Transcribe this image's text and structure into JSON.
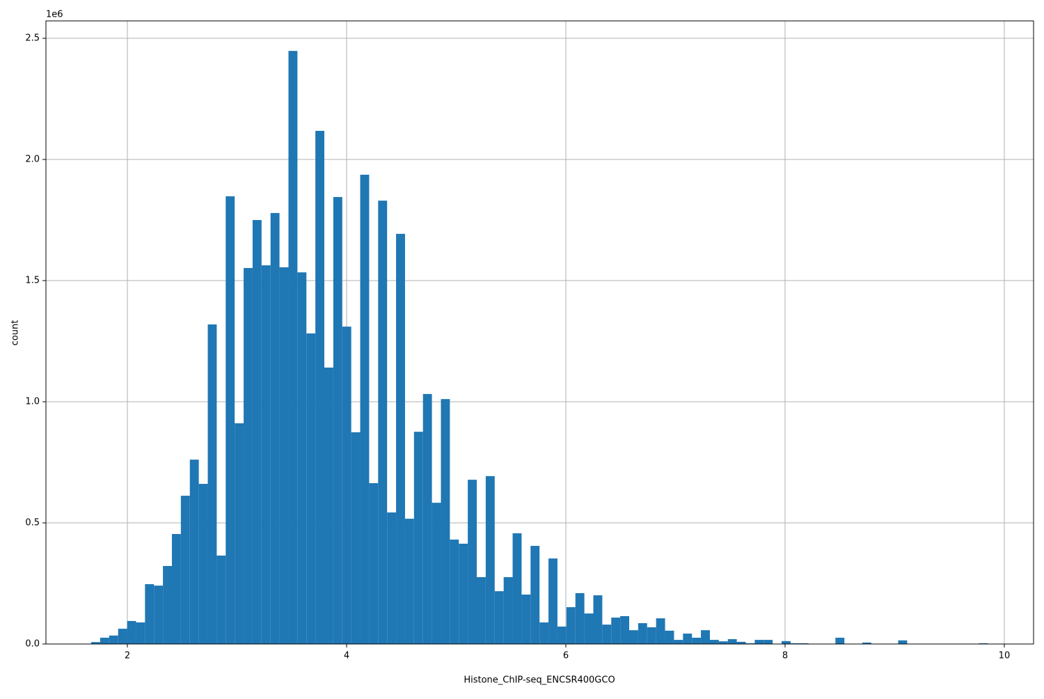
{
  "chart_data": {
    "type": "histogram",
    "x_label": "Histone_ChIP-seq_ENCSR400GCO",
    "y_label": "count",
    "y_offset_label": "1e6",
    "color": "#1f77b4",
    "grid": true,
    "xlim": [
      1.257,
      10.267
    ],
    "ylim": [
      0,
      2572000
    ],
    "xticks": [
      2,
      4,
      6,
      8,
      10
    ],
    "yticks": [
      {
        "value": 0,
        "label": "0.0"
      },
      {
        "value": 500000,
        "label": "0.5"
      },
      {
        "value": 1000000,
        "label": "1.0"
      },
      {
        "value": 1500000,
        "label": "1.5"
      },
      {
        "value": 2000000,
        "label": "2.0"
      },
      {
        "value": 2500000,
        "label": "2.5"
      }
    ],
    "bins": [
      1.67,
      1.7518,
      1.8336,
      1.9154,
      1.9972,
      2.079,
      2.1608,
      2.2426,
      2.3244,
      2.4062,
      2.488,
      2.5698,
      2.6516,
      2.7334,
      2.8152,
      2.897,
      2.9788,
      3.0606,
      3.1424,
      3.2242,
      3.306,
      3.3878,
      3.4696,
      3.5514,
      3.6332,
      3.715,
      3.7968,
      3.8786,
      3.9604,
      4.0422,
      4.124,
      4.2058,
      4.2876,
      4.3694,
      4.4512,
      4.533,
      4.6148,
      4.6966,
      4.7784,
      4.8602,
      4.942,
      5.0238,
      5.1056,
      5.1874,
      5.2692,
      5.351,
      5.4328,
      5.5146,
      5.5964,
      5.6782,
      5.76,
      5.8418,
      5.9236,
      6.0054,
      6.0872,
      6.169,
      6.2508,
      6.3326,
      6.4144,
      6.4962,
      6.578,
      6.6598,
      6.7416,
      6.8234,
      6.9052,
      6.987,
      7.0688,
      7.1506,
      7.2324,
      7.3142,
      7.396,
      7.4778,
      7.5596,
      7.6414,
      7.7232,
      7.805,
      7.8868,
      7.9686,
      8.0504,
      8.1322,
      8.214,
      8.2958,
      8.3776,
      8.4594,
      8.5412,
      8.623,
      8.7048,
      8.7866,
      8.8684,
      8.9502,
      9.032,
      9.1138,
      9.1956,
      9.2774,
      9.3592,
      9.441,
      9.5228,
      9.6046,
      9.6864,
      9.7682,
      9.85
    ],
    "values": [
      8000,
      26000,
      35000,
      63000,
      95000,
      89000,
      247000,
      241000,
      322000,
      454000,
      612000,
      761000,
      661000,
      1319000,
      365000,
      1848000,
      911000,
      1552000,
      1750000,
      1563000,
      1779000,
      1555000,
      2448000,
      1534000,
      1282000,
      2118000,
      1141000,
      1845000,
      1310000,
      874000,
      1937000,
      664000,
      1830000,
      543000,
      1693000,
      517000,
      876000,
      1032000,
      583000,
      1011000,
      431000,
      414000,
      678000,
      276000,
      693000,
      218000,
      276000,
      457000,
      204000,
      405000,
      89000,
      353000,
      72000,
      152000,
      210000,
      126000,
      201000,
      80000,
      109000,
      115000,
      57000,
      86000,
      69000,
      106000,
      55000,
      17000,
      43000,
      26000,
      57000,
      17000,
      11000,
      20000,
      9000,
      3000,
      17000,
      17000,
      0,
      12000,
      3000,
      3000,
      0,
      0,
      0,
      26000,
      0,
      0,
      6000,
      0,
      0,
      0,
      15000,
      0,
      0,
      0,
      0,
      0,
      0,
      0,
      0,
      3000
    ]
  }
}
